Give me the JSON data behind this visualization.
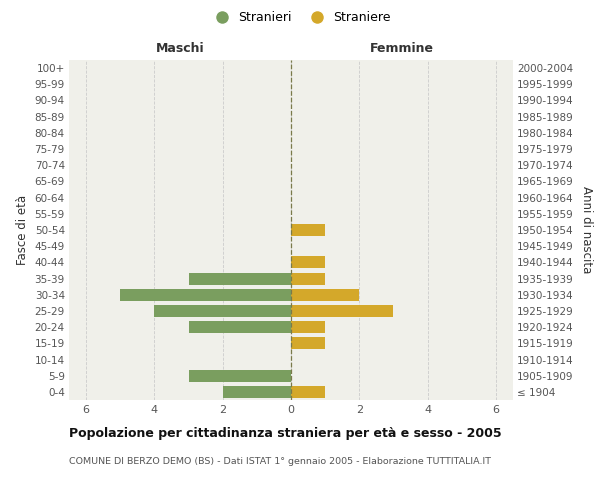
{
  "age_groups": [
    "100+",
    "95-99",
    "90-94",
    "85-89",
    "80-84",
    "75-79",
    "70-74",
    "65-69",
    "60-64",
    "55-59",
    "50-54",
    "45-49",
    "40-44",
    "35-39",
    "30-34",
    "25-29",
    "20-24",
    "15-19",
    "10-14",
    "5-9",
    "0-4"
  ],
  "birth_years": [
    "≤ 1904",
    "1905-1909",
    "1910-1914",
    "1915-1919",
    "1920-1924",
    "1925-1929",
    "1930-1934",
    "1935-1939",
    "1940-1944",
    "1945-1949",
    "1950-1954",
    "1955-1959",
    "1960-1964",
    "1965-1969",
    "1970-1974",
    "1975-1979",
    "1980-1984",
    "1985-1989",
    "1990-1994",
    "1995-1999",
    "2000-2004"
  ],
  "males": [
    0,
    0,
    0,
    0,
    0,
    0,
    0,
    0,
    0,
    0,
    0,
    0,
    0,
    3,
    5,
    4,
    3,
    0,
    0,
    3,
    2
  ],
  "females": [
    0,
    0,
    0,
    0,
    0,
    0,
    0,
    0,
    0,
    0,
    1,
    0,
    1,
    1,
    2,
    3,
    1,
    1,
    0,
    0,
    1
  ],
  "male_color": "#7a9e5f",
  "female_color": "#d4a82a",
  "center_line_color": "#7a7a4a",
  "grid_color": "#cccccc",
  "title": "Popolazione per cittadinanza straniera per età e sesso - 2005",
  "subtitle": "COMUNE DI BERZO DEMO (BS) - Dati ISTAT 1° gennaio 2005 - Elaborazione TUTTITALIA.IT",
  "xlabel_left": "Maschi",
  "xlabel_right": "Femmine",
  "ylabel_left": "Fasce di età",
  "ylabel_right": "Anni di nascita",
  "legend_male": "Stranieri",
  "legend_female": "Straniere",
  "xlim": 6.5,
  "background_color": "#ffffff",
  "plot_bg_color": "#f0f0ea"
}
